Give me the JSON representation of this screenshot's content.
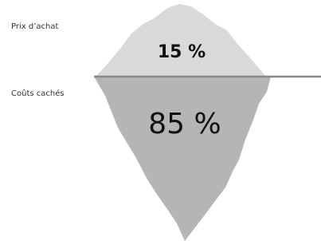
{
  "labels": {
    "above": "Prix d’achat",
    "below": "Coûts cachés"
  },
  "iceberg": {
    "tip": "15 %",
    "hidden": "85 %"
  }
}
